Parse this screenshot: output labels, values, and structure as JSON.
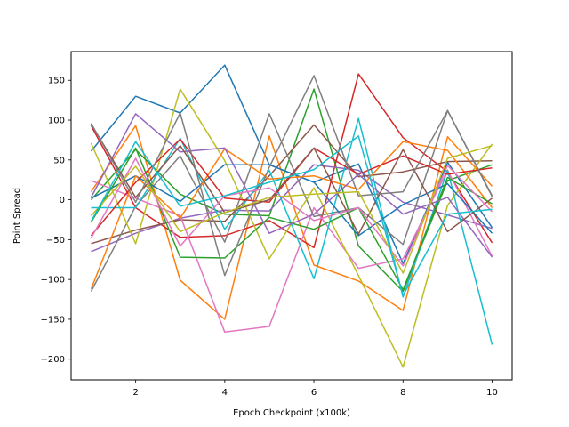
{
  "chart_data": {
    "type": "line",
    "title": "",
    "xlabel": "Epoch Checkpoint (x100k)",
    "ylabel": "Point Spread",
    "xlim": [
      0.55,
      10.45
    ],
    "ylim": [
      -226,
      186
    ],
    "xticks": [
      2,
      4,
      6,
      8,
      10
    ],
    "yticks": [
      -200,
      -150,
      -100,
      -50,
      0,
      50,
      100,
      150
    ],
    "grid": false,
    "legend": "none",
    "x": [
      1,
      2,
      3,
      4,
      5,
      6,
      7,
      8,
      9,
      10
    ],
    "series": [
      {
        "color": "#1f77b4",
        "values": [
          61,
          130,
          109,
          169,
          44,
          22,
          45,
          -80,
          47,
          -35
        ]
      },
      {
        "color": "#ff7f0e",
        "values": [
          10,
          93,
          -101,
          -150,
          80,
          -82,
          -102,
          -139,
          79,
          17
        ]
      },
      {
        "color": "#2ca02c",
        "values": [
          0,
          63,
          7,
          -18,
          -20,
          139,
          -58,
          -115,
          24,
          44
        ]
      },
      {
        "color": "#d62728",
        "values": [
          93,
          -10,
          -47,
          -45,
          -26,
          -60,
          158,
          78,
          35,
          -54
        ]
      },
      {
        "color": "#9467bd",
        "values": [
          -65,
          -42,
          -23,
          -13,
          -14,
          44,
          37,
          -3,
          -19,
          -36
        ]
      },
      {
        "color": "#8c564b",
        "values": [
          -55,
          -38,
          -25,
          -27,
          30,
          94,
          29,
          35,
          48,
          49
        ]
      },
      {
        "color": "#e377c2",
        "values": [
          24,
          2,
          -20,
          -166,
          -159,
          -10,
          -86,
          -74,
          37,
          -71
        ]
      },
      {
        "color": "#7f7f7f",
        "values": [
          -115,
          -8,
          55,
          -53,
          108,
          -21,
          -10,
          -56,
          112,
          4
        ]
      },
      {
        "color": "#bcbd22",
        "values": [
          71,
          -55,
          139,
          49,
          -74,
          15,
          -95,
          -210,
          -7,
          70
        ]
      },
      {
        "color": "#17becf",
        "values": [
          -10,
          -10,
          77,
          -37,
          37,
          -99,
          102,
          -122,
          37,
          -182
        ]
      },
      {
        "color": "#1f77b4",
        "values": [
          2,
          30,
          -2,
          44,
          44,
          22,
          -45,
          -6,
          20,
          -42
        ]
      },
      {
        "color": "#ff7f0e",
        "values": [
          -112,
          30,
          -23,
          64,
          26,
          30,
          13,
          73,
          62,
          -10
        ]
      },
      {
        "color": "#2ca02c",
        "values": [
          -28,
          65,
          -72,
          -73,
          -22,
          -37,
          -10,
          -113,
          28,
          -5
        ]
      },
      {
        "color": "#d62728",
        "values": [
          -45,
          22,
          76,
          2,
          -3,
          65,
          32,
          55,
          32,
          40
        ]
      },
      {
        "color": "#9467bd",
        "values": [
          3,
          108,
          60,
          65,
          -42,
          -18,
          32,
          -18,
          3,
          -72
        ]
      },
      {
        "color": "#8c564b",
        "values": [
          95,
          3,
          68,
          -16,
          0,
          65,
          -43,
          63,
          -40,
          2
        ]
      },
      {
        "color": "#e377c2",
        "values": [
          -48,
          52,
          -58,
          5,
          15,
          -26,
          -10,
          -83,
          43,
          -15
        ]
      },
      {
        "color": "#7f7f7f",
        "values": [
          96,
          -3,
          109,
          -95,
          41,
          156,
          5,
          10,
          112,
          5
        ]
      },
      {
        "color": "#bcbd22",
        "values": [
          -20,
          42,
          -40,
          -16,
          3,
          7,
          10,
          -92,
          52,
          68
        ]
      },
      {
        "color": "#17becf",
        "values": [
          -27,
          73,
          -8,
          5,
          22,
          38,
          80,
          -120,
          -18,
          -12
        ]
      }
    ]
  }
}
